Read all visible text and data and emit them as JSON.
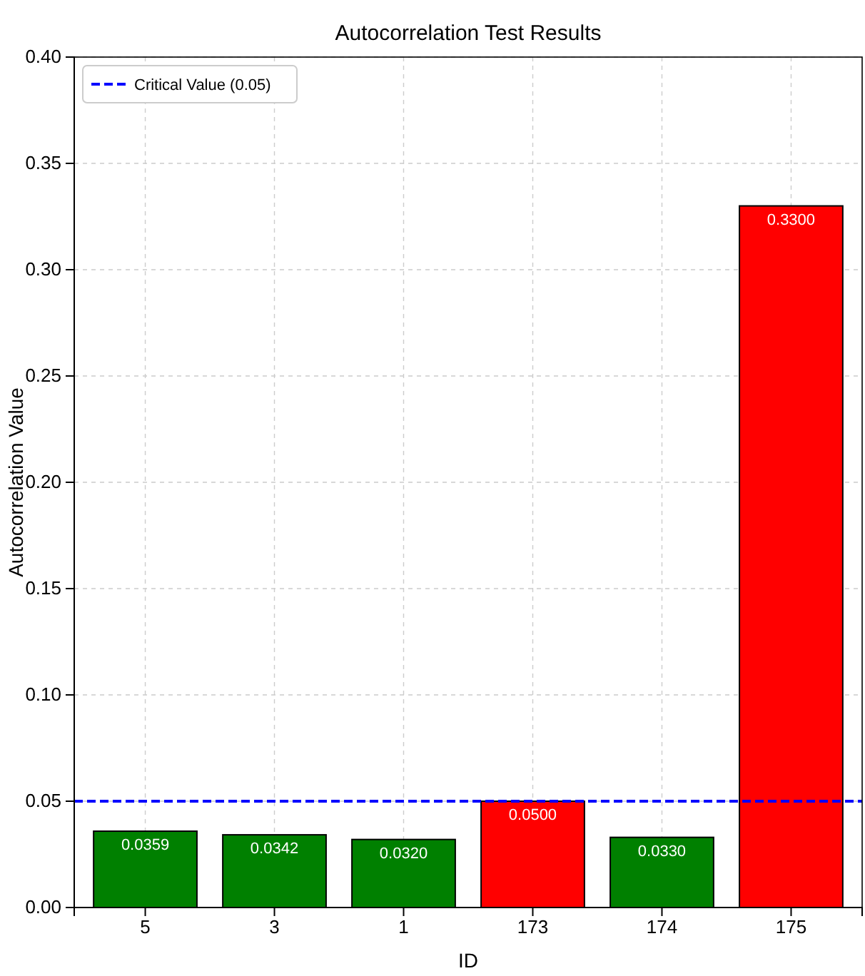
{
  "chart_data": {
    "type": "bar",
    "title": "Autocorrelation Test Results",
    "xlabel": "ID",
    "ylabel": "Autocorrelation Value",
    "categories": [
      "5",
      "3",
      "1",
      "173",
      "174",
      "175"
    ],
    "values": [
      0.0359,
      0.0342,
      0.032,
      0.05,
      0.033,
      0.33
    ],
    "colors": [
      "#008000",
      "#008000",
      "#008000",
      "#ff0000",
      "#008000",
      "#ff0000"
    ],
    "value_labels": [
      "0.0359",
      "0.0342",
      "0.0320",
      "0.0500",
      "0.0330",
      "0.3300"
    ],
    "ylim": [
      0,
      0.4
    ],
    "yticks": [
      {
        "value": 0,
        "label": "0.00"
      },
      {
        "value": 0.05,
        "label": "0.05"
      },
      {
        "value": 0.1,
        "label": "0.10"
      },
      {
        "value": 0.15,
        "label": "0.15"
      },
      {
        "value": 0.2,
        "label": "0.20"
      },
      {
        "value": 0.25,
        "label": "0.25"
      },
      {
        "value": 0.3,
        "label": "0.30"
      },
      {
        "value": 0.35,
        "label": "0.35"
      },
      {
        "value": 0.4,
        "label": "0.40"
      }
    ],
    "ref_lines": [
      {
        "axis": "y",
        "value": 0.05,
        "label": "Critical Value (0.05)",
        "color": "#0000ff",
        "line_style": "dashed"
      }
    ],
    "grid": true,
    "legend": "top left"
  }
}
